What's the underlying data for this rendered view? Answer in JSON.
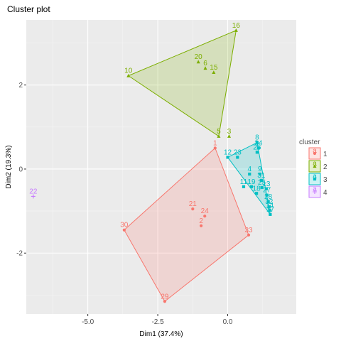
{
  "chart_data": {
    "type": "scatter",
    "title": "Cluster plot",
    "xlabel": "Dim1 (37.4%)",
    "ylabel": "Dim2 (19.3%)",
    "xlim": [
      -7.2,
      2.45
    ],
    "ylim": [
      -3.45,
      3.55
    ],
    "xticks": [
      -5.0,
      -2.5,
      0.0
    ],
    "xtick_labels": [
      "-5.0",
      "-2.5",
      "0.0"
    ],
    "yticks": [
      -2,
      0,
      2
    ],
    "ytick_labels": [
      "-2",
      "0",
      "2"
    ],
    "grid": true,
    "legend": {
      "title": "cluster",
      "position": "right",
      "entries": [
        {
          "key": "1",
          "label": "1",
          "shape": "circle",
          "letter": "a"
        },
        {
          "key": "2",
          "label": "2",
          "shape": "triangle",
          "letter": "a"
        },
        {
          "key": "3",
          "label": "3",
          "shape": "square",
          "letter": "a"
        },
        {
          "key": "4",
          "label": "4",
          "shape": "plus",
          "letter": "a"
        }
      ]
    },
    "series": [
      {
        "name": "1",
        "color": "#F8766D",
        "fill": "#F8766D",
        "shape": "circle",
        "hull": [
          "1",
          "33",
          "29",
          "30"
        ],
        "points": [
          {
            "label": "1",
            "x": -0.45,
            "y": 0.5
          },
          {
            "label": "21",
            "x": -1.25,
            "y": -0.95
          },
          {
            "label": "24",
            "x": -0.82,
            "y": -1.12
          },
          {
            "label": "2",
            "x": -0.95,
            "y": -1.35
          },
          {
            "label": "30",
            "x": -3.7,
            "y": -1.45
          },
          {
            "label": "33",
            "x": 0.75,
            "y": -1.57
          },
          {
            "label": "29",
            "x": -2.25,
            "y": -3.15
          }
        ]
      },
      {
        "name": "2",
        "color": "#7CAE00",
        "fill": "#7CAE00",
        "shape": "triangle",
        "hull": [
          "16",
          "5",
          "10"
        ],
        "points": [
          {
            "label": "16",
            "x": 0.3,
            "y": 3.3
          },
          {
            "label": "10",
            "x": -3.55,
            "y": 2.22
          },
          {
            "label": "20",
            "x": -1.05,
            "y": 2.55
          },
          {
            "label": "6",
            "x": -0.8,
            "y": 2.4
          },
          {
            "label": "15",
            "x": -0.5,
            "y": 2.3
          },
          {
            "label": "5",
            "x": -0.32,
            "y": 0.78
          },
          {
            "label": "3",
            "x": 0.05,
            "y": 0.78
          }
        ]
      },
      {
        "name": "3",
        "color": "#00BFC4",
        "fill": "#00BFC4",
        "shape": "square",
        "hull": [
          "8",
          "17",
          "12"
        ],
        "points": [
          {
            "label": "8",
            "x": 1.05,
            "y": 0.63
          },
          {
            "label": "34",
            "x": 1.1,
            "y": 0.5
          },
          {
            "label": "26",
            "x": 1.05,
            "y": 0.4
          },
          {
            "label": "12",
            "x": 0.0,
            "y": 0.28
          },
          {
            "label": "23",
            "x": 0.35,
            "y": 0.28
          },
          {
            "label": "4",
            "x": 0.78,
            "y": -0.12
          },
          {
            "label": "9",
            "x": 1.15,
            "y": -0.12
          },
          {
            "label": "31",
            "x": 1.2,
            "y": -0.27
          },
          {
            "label": "11",
            "x": 0.57,
            "y": -0.42
          },
          {
            "label": "19",
            "x": 0.85,
            "y": -0.42
          },
          {
            "label": "25",
            "x": 1.22,
            "y": -0.44
          },
          {
            "label": "13",
            "x": 1.38,
            "y": -0.47
          },
          {
            "label": "18",
            "x": 1.03,
            "y": -0.58
          },
          {
            "label": "27",
            "x": 1.4,
            "y": -0.62
          },
          {
            "label": "28",
            "x": 1.45,
            "y": -0.78
          },
          {
            "label": "32",
            "x": 1.48,
            "y": -0.9
          },
          {
            "label": "14",
            "x": 1.5,
            "y": -0.98
          },
          {
            "label": "17",
            "x": 1.52,
            "y": -1.08
          }
        ]
      },
      {
        "name": "4",
        "color": "#C77CFF",
        "fill": "#C77CFF",
        "shape": "plus",
        "hull": [],
        "points": [
          {
            "label": "22",
            "x": -6.95,
            "y": -0.65
          }
        ]
      }
    ]
  }
}
